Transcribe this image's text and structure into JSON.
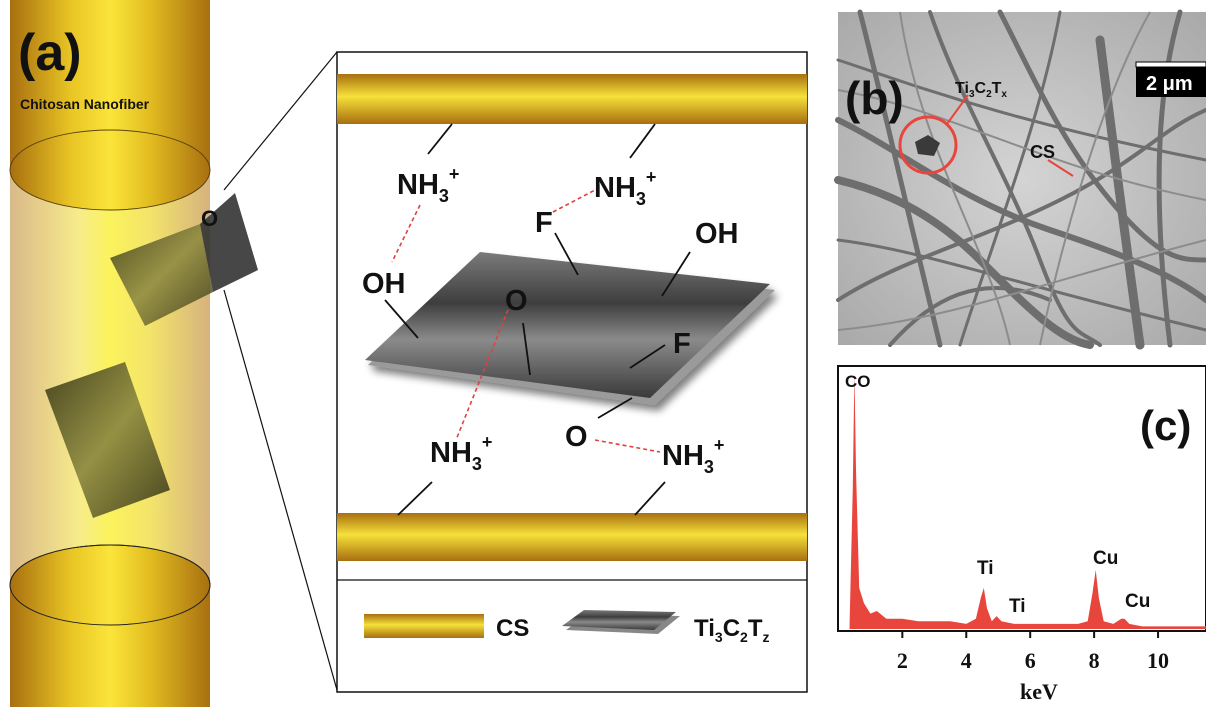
{
  "panel_a": {
    "letter": "(a)",
    "fiber_label": "Chitosan Nanofiber",
    "zoom_marker": "O",
    "groups": {
      "nh3_top_left": "NH",
      "nh3_top_right": "NH",
      "nh3_bottom_left": "NH",
      "nh3_bottom_right": "NH",
      "nh3_sub": "3",
      "nh3_sup": "+",
      "f_top": "F",
      "oh_right": "OH",
      "oh_left": "OH",
      "o_center": "O",
      "f_right": "F",
      "o_bottom": "O"
    },
    "legend": {
      "cs_label": "CS",
      "mxene_label": "Ti",
      "mxene_sub_1": "3",
      "mxene_c": "C",
      "mxene_sub_2": "2",
      "mxene_t": "T",
      "mxene_sub_3": "z"
    }
  },
  "panel_b": {
    "letter": "(b)",
    "scale_bar": "2 μm",
    "mxene_label": "Ti",
    "mxene_sub_1": "3",
    "mxene_c": "C",
    "mxene_sub_2": "2",
    "mxene_t": "T",
    "mxene_sub_3": "x",
    "cs_label": "CS"
  },
  "panel_c": {
    "letter": "(c)",
    "peak_co": "CO",
    "peak_ti_1": "Ti",
    "peak_ti_2": "Ti",
    "peak_cu_1": "Cu",
    "peak_cu_2": "Cu",
    "xlabel": "keV"
  },
  "colors": {
    "gold_dark": "#b07a14",
    "gold_light": "#f2d327",
    "mxene_gray": "#5a5a5a",
    "spectrum_red": "#e8453c",
    "bond_red": "#e04040"
  },
  "chart_data": {
    "type": "area",
    "title": "",
    "xlabel": "keV",
    "ylabel": "",
    "xlim": [
      0,
      11.5
    ],
    "x_ticks": [
      2,
      4,
      6,
      8,
      10
    ],
    "peaks": [
      {
        "name": "CO",
        "x": 0.5,
        "y": 1.0
      },
      {
        "name": "Ti",
        "x": 4.5,
        "y": 0.16
      },
      {
        "name": "Ti",
        "x": 4.9,
        "y": 0.05
      },
      {
        "name": "Cu",
        "x": 8.05,
        "y": 0.23
      },
      {
        "name": "Cu",
        "x": 8.9,
        "y": 0.04
      }
    ],
    "series": [
      {
        "x": [
          0.35,
          0.45,
          0.5,
          0.55,
          0.65,
          0.8,
          1.0,
          1.2,
          1.5,
          2.0,
          2.5,
          3.0,
          3.5,
          4.0,
          4.3,
          4.45,
          4.55,
          4.65,
          4.8,
          4.95,
          5.1,
          5.5,
          6.0,
          6.5,
          7.0,
          7.5,
          7.8,
          7.95,
          8.05,
          8.15,
          8.3,
          8.6,
          8.85,
          8.95,
          9.1,
          9.5,
          10.0,
          10.5,
          11.0,
          11.5
        ],
        "values": [
          0.02,
          0.55,
          1.0,
          0.62,
          0.16,
          0.1,
          0.06,
          0.07,
          0.04,
          0.04,
          0.03,
          0.03,
          0.03,
          0.02,
          0.04,
          0.12,
          0.16,
          0.08,
          0.03,
          0.05,
          0.03,
          0.02,
          0.02,
          0.02,
          0.02,
          0.02,
          0.03,
          0.14,
          0.23,
          0.12,
          0.03,
          0.02,
          0.04,
          0.04,
          0.02,
          0.01,
          0.01,
          0.01,
          0.01,
          0.01
        ]
      }
    ]
  }
}
